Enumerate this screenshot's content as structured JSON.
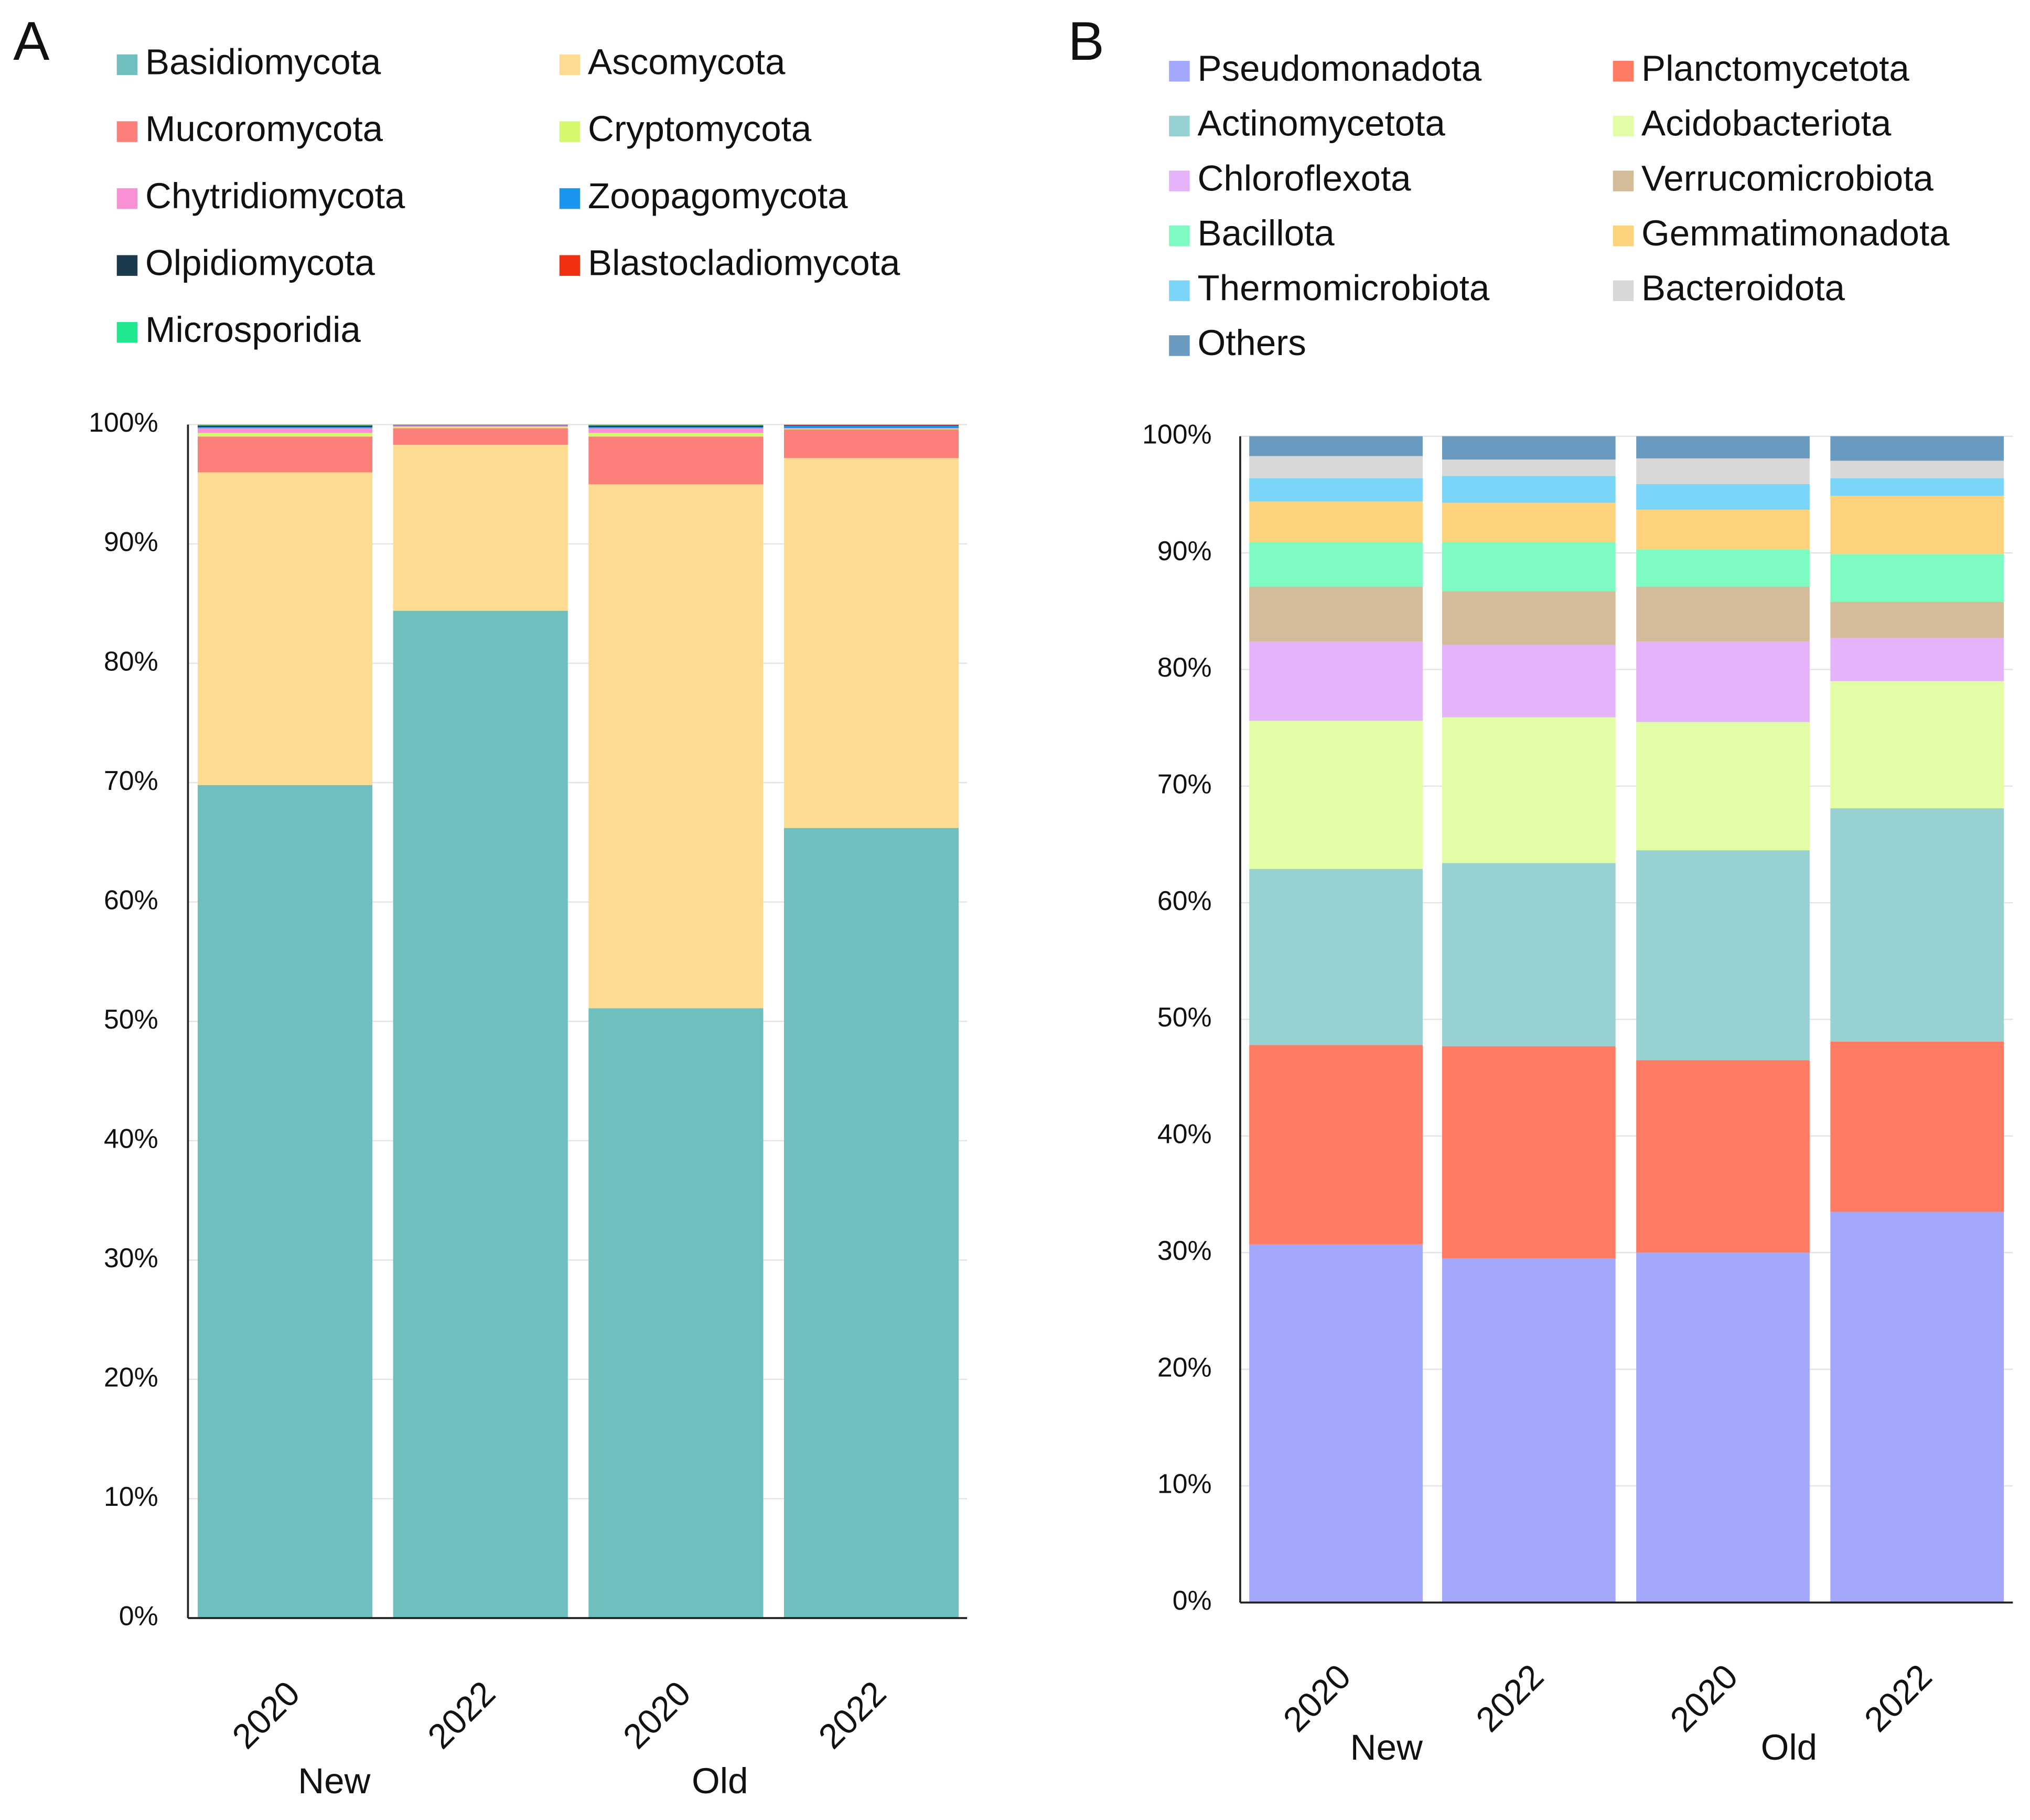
{
  "chart_data": [
    {
      "type": "stacked_bar",
      "label": "A",
      "categories": [
        "2020",
        "2022",
        "2020",
        "2022"
      ],
      "group_labels": [
        "New",
        "Old"
      ],
      "ylim": [
        0,
        100
      ],
      "yticks": [
        {
          "value": 0,
          "label": "0%"
        },
        {
          "value": 10,
          "label": "10%"
        },
        {
          "value": 20,
          "label": "20%"
        },
        {
          "value": 30,
          "label": "30%"
        },
        {
          "value": 40,
          "label": "40%"
        },
        {
          "value": 50,
          "label": "50%"
        },
        {
          "value": 60,
          "label": "60%"
        },
        {
          "value": 70,
          "label": "70%"
        },
        {
          "value": 80,
          "label": "80%"
        },
        {
          "value": 90,
          "label": "90%"
        },
        {
          "value": 100,
          "label": "100%"
        }
      ],
      "grid": true,
      "series": [
        {
          "name": "Basidiomycota",
          "color": "#70bfbf",
          "values": [
            69.8,
            84.4,
            51.1,
            66.2
          ]
        },
        {
          "name": "Ascomycota",
          "color": "#fddc91",
          "values": [
            26.2,
            13.9,
            43.9,
            31.0
          ]
        },
        {
          "name": "Mucoromycota",
          "color": "#fc8079",
          "values": [
            3.0,
            1.4,
            4.0,
            2.4
          ]
        },
        {
          "name": "Cryptomycota",
          "color": "#d4f96d",
          "values": [
            0.3,
            0.1,
            0.3,
            0.05
          ]
        },
        {
          "name": "Chytridiomycota",
          "color": "#f98fd5",
          "values": [
            0.4,
            0.1,
            0.4,
            0.05
          ]
        },
        {
          "name": "Zoopagomycota",
          "color": "#1a96f0",
          "values": [
            0.1,
            0.05,
            0.1,
            0.2
          ]
        },
        {
          "name": "Olpidiomycota",
          "color": "#1a3a4e",
          "values": [
            0.1,
            0.02,
            0.1,
            0.05
          ]
        },
        {
          "name": "Blastocladiomycota",
          "color": "#f03010",
          "values": [
            0.05,
            0.02,
            0.05,
            0.03
          ]
        },
        {
          "name": "Microsporidia",
          "color": "#20e88f",
          "values": [
            0.05,
            0.01,
            0.05,
            0.02
          ]
        }
      ]
    },
    {
      "type": "stacked_bar",
      "label": "B",
      "categories": [
        "2020",
        "2022",
        "2020",
        "2022"
      ],
      "group_labels": [
        "New",
        "Old"
      ],
      "ylim": [
        0,
        100
      ],
      "yticks": [
        {
          "value": 0,
          "label": "0%"
        },
        {
          "value": 10,
          "label": "10%"
        },
        {
          "value": 20,
          "label": "20%"
        },
        {
          "value": 30,
          "label": "30%"
        },
        {
          "value": 40,
          "label": "40%"
        },
        {
          "value": 50,
          "label": "50%"
        },
        {
          "value": 60,
          "label": "60%"
        },
        {
          "value": 70,
          "label": "70%"
        },
        {
          "value": 80,
          "label": "80%"
        },
        {
          "value": 90,
          "label": "90%"
        },
        {
          "value": 100,
          "label": "100%"
        }
      ],
      "grid": true,
      "series": [
        {
          "name": "Pseudomonadota",
          "color": "#a3a8fc",
          "values": [
            30.7,
            29.5,
            30.0,
            33.5
          ]
        },
        {
          "name": "Planctomycetota",
          "color": "#fd7b63",
          "values": [
            17.1,
            18.2,
            16.5,
            14.6
          ]
        },
        {
          "name": "Actinomycetota",
          "color": "#98d1d1",
          "values": [
            15.1,
            15.7,
            18.0,
            20.0
          ]
        },
        {
          "name": "Acidobacteriota",
          "color": "#e3fca6",
          "values": [
            12.7,
            12.5,
            11.0,
            10.9
          ]
        },
        {
          "name": "Chloroflexota",
          "color": "#e5b3f9",
          "values": [
            6.8,
            6.2,
            6.9,
            3.7
          ]
        },
        {
          "name": "Verrucomicrobiota",
          "color": "#d4bb9a",
          "values": [
            4.7,
            4.6,
            4.7,
            3.1
          ]
        },
        {
          "name": "Bacillota",
          "color": "#7efbc3",
          "values": [
            3.8,
            4.2,
            3.2,
            4.1
          ]
        },
        {
          "name": "Gemmatimonadota",
          "color": "#fcd27c",
          "values": [
            3.5,
            3.4,
            3.4,
            5.0
          ]
        },
        {
          "name": "Thermomicrobiota",
          "color": "#7ad5f9",
          "values": [
            2.0,
            2.3,
            2.2,
            1.5
          ]
        },
        {
          "name": "Bacteroidota",
          "color": "#d8d8d8",
          "values": [
            1.9,
            1.4,
            2.2,
            1.5
          ]
        },
        {
          "name": "Others",
          "color": "#6a9ac0",
          "values": [
            1.7,
            2.0,
            1.9,
            2.1
          ]
        }
      ]
    }
  ]
}
